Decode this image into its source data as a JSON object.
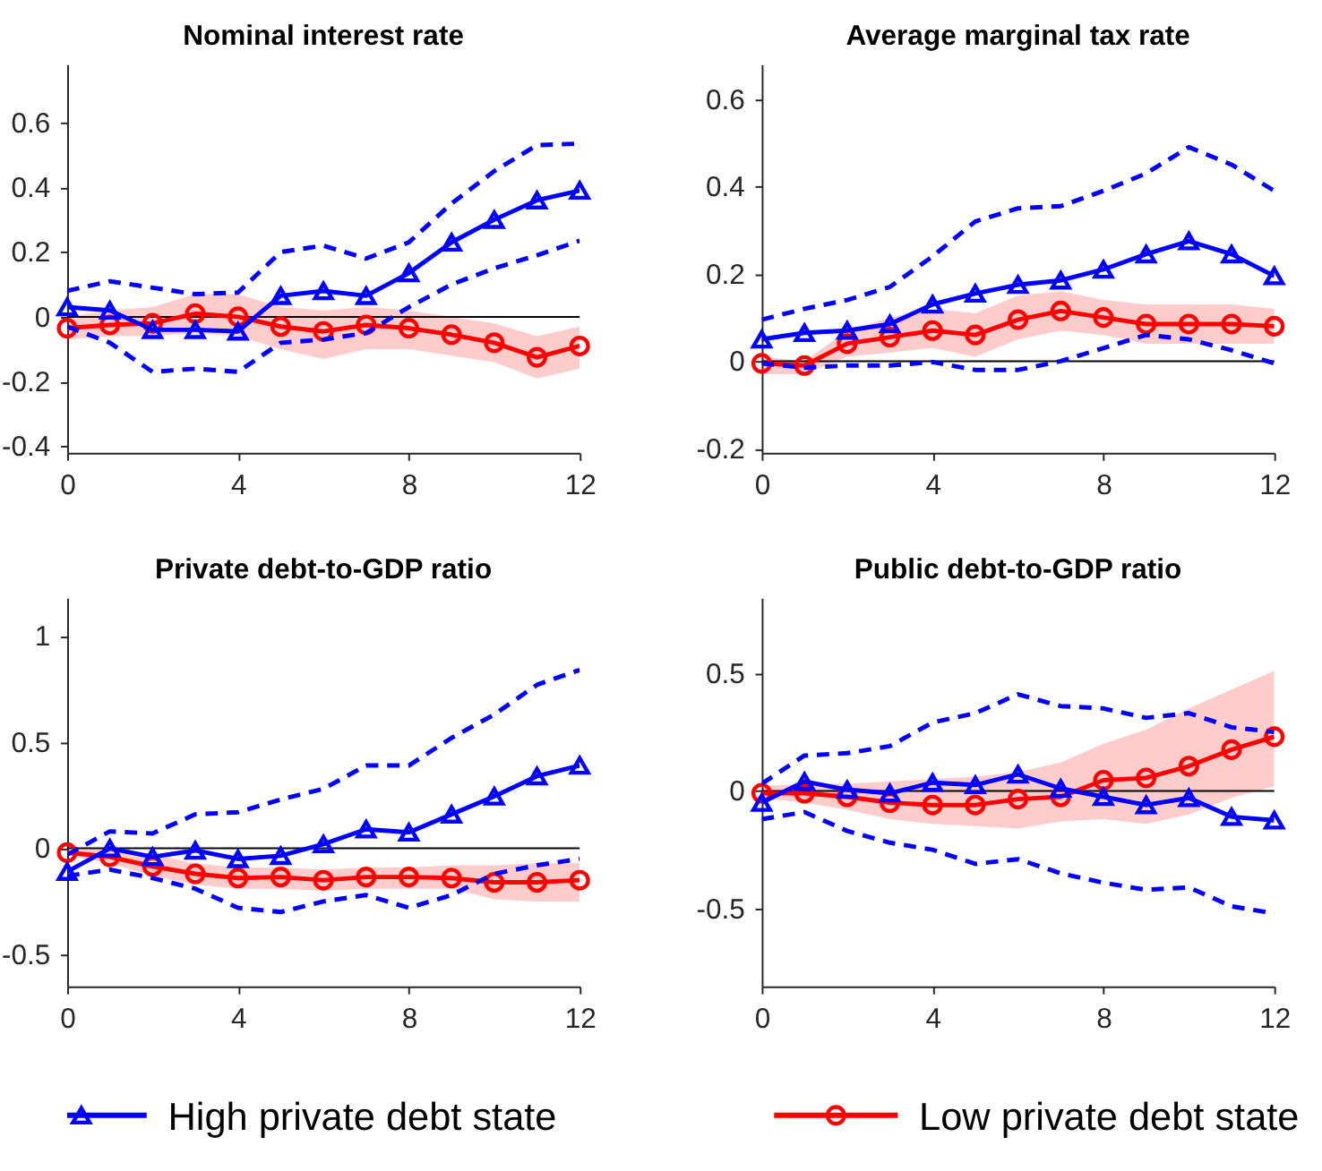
{
  "chart_data": [
    {
      "type": "line",
      "title": "Nominal interest rate",
      "x": [
        0,
        1,
        2,
        3,
        4,
        5,
        6,
        7,
        8,
        9,
        10,
        11,
        12
      ],
      "xlim": [
        0,
        12
      ],
      "xticks": [
        0,
        4,
        8,
        12
      ],
      "ylim": [
        -0.42,
        0.78
      ],
      "yticks": [
        -0.4,
        -0.2,
        0,
        0.2,
        0.4,
        0.6
      ],
      "legend": "bottom",
      "ref_lines": [
        {
          "axis": "y",
          "value": 0,
          "color": "#000000"
        }
      ],
      "series": [
        {
          "name": "High private debt state",
          "color": "#0000ff",
          "marker": "triangle",
          "line_style": "solid",
          "values": [
            0.03,
            0.02,
            -0.04,
            -0.04,
            -0.045,
            0.065,
            0.08,
            0.065,
            0.135,
            0.23,
            0.3,
            0.36,
            0.39
          ]
        },
        {
          "color": "#0000ff",
          "marker": "none",
          "line_style": "dashed",
          "values": [
            0.08,
            0.11,
            0.09,
            0.07,
            0.075,
            0.2,
            0.22,
            0.18,
            0.23,
            0.35,
            0.45,
            0.53,
            0.535
          ]
        },
        {
          "color": "#0000ff",
          "marker": "none",
          "line_style": "dashed",
          "values": [
            -0.03,
            -0.08,
            -0.17,
            -0.16,
            -0.17,
            -0.08,
            -0.07,
            -0.05,
            0.03,
            0.1,
            0.15,
            0.19,
            0.235
          ]
        },
        {
          "name": "Low  private debt state",
          "color": "#ff0000",
          "marker": "circle",
          "line_style": "solid",
          "values": [
            -0.035,
            -0.025,
            -0.02,
            0.01,
            0,
            -0.03,
            -0.045,
            -0.025,
            -0.035,
            -0.055,
            -0.08,
            -0.125,
            -0.09
          ],
          "lower": [
            -0.07,
            -0.06,
            -0.06,
            -0.05,
            -0.06,
            -0.1,
            -0.13,
            -0.1,
            -0.1,
            -0.12,
            -0.14,
            -0.19,
            -0.16
          ],
          "upper": [
            0.0,
            0.02,
            0.03,
            0.07,
            0.07,
            0.03,
            0.02,
            0.03,
            0.02,
            0.0,
            -0.02,
            -0.06,
            -0.03
          ]
        }
      ]
    },
    {
      "type": "line",
      "title": "Average marginal tax rate",
      "x": [
        0,
        1,
        2,
        3,
        4,
        5,
        6,
        7,
        8,
        9,
        10,
        11,
        12
      ],
      "xlim": [
        0,
        12
      ],
      "xticks": [
        0,
        4,
        8,
        12
      ],
      "ylim": [
        -0.21,
        0.68
      ],
      "yticks": [
        -0.2,
        0,
        0.2,
        0.4,
        0.6
      ],
      "ref_lines": [
        {
          "axis": "y",
          "value": 0,
          "color": "#000000"
        }
      ],
      "series": [
        {
          "color": "#0000ff",
          "marker": "triangle",
          "line_style": "solid",
          "values": [
            0.05,
            0.065,
            0.07,
            0.085,
            0.13,
            0.155,
            0.175,
            0.185,
            0.21,
            0.245,
            0.275,
            0.245,
            0.195
          ]
        },
        {
          "color": "#0000ff",
          "marker": "none",
          "line_style": "dashed",
          "values": [
            0.095,
            0.12,
            0.14,
            0.17,
            0.24,
            0.32,
            0.35,
            0.355,
            0.39,
            0.43,
            0.49,
            0.45,
            0.39
          ]
        },
        {
          "color": "#0000ff",
          "marker": "none",
          "line_style": "dashed",
          "values": [
            -0.005,
            -0.015,
            -0.01,
            -0.01,
            -0.002,
            -0.02,
            -0.02,
            0.0,
            0.03,
            0.06,
            0.05,
            0.025,
            -0.005
          ]
        },
        {
          "color": "#ff0000",
          "marker": "circle",
          "line_style": "solid",
          "values": [
            -0.005,
            -0.01,
            0.04,
            0.055,
            0.07,
            0.06,
            0.095,
            0.115,
            0.1,
            0.085,
            0.085,
            0.085,
            0.08
          ],
          "lower": [
            -0.03,
            -0.03,
            0.01,
            0.02,
            0.03,
            0.01,
            0.05,
            0.07,
            0.06,
            0.04,
            0.04,
            0.04,
            0.04
          ],
          "upper": [
            0.01,
            0.0,
            0.07,
            0.1,
            0.12,
            0.11,
            0.15,
            0.16,
            0.14,
            0.13,
            0.13,
            0.13,
            0.12
          ]
        }
      ]
    },
    {
      "type": "line",
      "title": "Private debt-to-GDP ratio",
      "x": [
        0,
        1,
        2,
        3,
        4,
        5,
        6,
        7,
        8,
        9,
        10,
        11,
        12
      ],
      "xlim": [
        0,
        12
      ],
      "xticks": [
        0,
        4,
        8,
        12
      ],
      "ylim": [
        -0.65,
        1.18
      ],
      "yticks": [
        -0.5,
        0,
        0.5,
        1
      ],
      "ref_lines": [
        {
          "axis": "y",
          "value": 0,
          "color": "#000000"
        }
      ],
      "series": [
        {
          "color": "#0000ff",
          "marker": "triangle",
          "line_style": "solid",
          "values": [
            -0.11,
            0,
            -0.04,
            -0.01,
            -0.05,
            -0.035,
            0.02,
            0.09,
            0.075,
            0.16,
            0.245,
            0.34,
            0.39
          ]
        },
        {
          "color": "#0000ff",
          "marker": "none",
          "line_style": "dashed",
          "values": [
            -0.03,
            0.08,
            0.07,
            0.16,
            0.17,
            0.23,
            0.28,
            0.39,
            0.39,
            0.52,
            0.63,
            0.77,
            0.84
          ]
        },
        {
          "color": "#0000ff",
          "marker": "none",
          "line_style": "dashed",
          "values": [
            -0.13,
            -0.1,
            -0.14,
            -0.19,
            -0.28,
            -0.3,
            -0.25,
            -0.22,
            -0.28,
            -0.22,
            -0.12,
            -0.08,
            -0.05
          ]
        },
        {
          "color": "#ff0000",
          "marker": "circle",
          "line_style": "solid",
          "values": [
            -0.02,
            -0.04,
            -0.085,
            -0.12,
            -0.14,
            -0.135,
            -0.15,
            -0.135,
            -0.135,
            -0.14,
            -0.16,
            -0.16,
            -0.15
          ],
          "lower": [
            -0.03,
            -0.07,
            -0.13,
            -0.17,
            -0.19,
            -0.19,
            -0.2,
            -0.19,
            -0.19,
            -0.19,
            -0.24,
            -0.25,
            -0.25
          ],
          "upper": [
            -0.01,
            0.0,
            -0.03,
            -0.07,
            -0.09,
            -0.09,
            -0.1,
            -0.09,
            -0.09,
            -0.08,
            -0.08,
            -0.07,
            -0.07
          ]
        }
      ]
    },
    {
      "type": "line",
      "title": "Public debt-to-GDP ratio",
      "x": [
        0,
        1,
        2,
        3,
        4,
        5,
        6,
        7,
        8,
        9,
        10,
        11,
        12
      ],
      "xlim": [
        0,
        12
      ],
      "xticks": [
        0,
        4,
        8,
        12
      ],
      "ylim": [
        -0.83,
        0.82
      ],
      "yticks": [
        -0.5,
        0,
        0.5
      ],
      "ref_lines": [
        {
          "axis": "y",
          "value": 0,
          "color": "#000000"
        }
      ],
      "series": [
        {
          "color": "#0000ff",
          "marker": "triangle",
          "line_style": "solid",
          "values": [
            -0.05,
            0.04,
            0.005,
            -0.01,
            0.035,
            0.025,
            0.07,
            0.01,
            -0.025,
            -0.06,
            -0.03,
            -0.11,
            -0.125
          ]
        },
        {
          "color": "#0000ff",
          "marker": "none",
          "line_style": "dashed",
          "values": [
            0.03,
            0.15,
            0.16,
            0.19,
            0.29,
            0.33,
            0.41,
            0.36,
            0.35,
            0.31,
            0.33,
            0.27,
            0.25
          ]
        },
        {
          "color": "#0000ff",
          "marker": "none",
          "line_style": "dashed",
          "values": [
            -0.12,
            -0.09,
            -0.17,
            -0.22,
            -0.25,
            -0.31,
            -0.29,
            -0.35,
            -0.39,
            -0.42,
            -0.41,
            -0.49,
            -0.52
          ]
        },
        {
          "color": "#ff0000",
          "marker": "circle",
          "line_style": "solid",
          "values": [
            -0.01,
            -0.01,
            -0.025,
            -0.05,
            -0.06,
            -0.06,
            -0.035,
            -0.025,
            0.045,
            0.055,
            0.105,
            0.175,
            0.23
          ],
          "lower": [
            -0.03,
            -0.05,
            -0.08,
            -0.12,
            -0.14,
            -0.15,
            -0.16,
            -0.13,
            -0.12,
            -0.14,
            -0.1,
            -0.03,
            0.02
          ],
          "upper": [
            0.02,
            0.03,
            0.03,
            0.04,
            0.05,
            0.06,
            0.08,
            0.12,
            0.2,
            0.26,
            0.35,
            0.43,
            0.51
          ]
        }
      ]
    }
  ]
}
